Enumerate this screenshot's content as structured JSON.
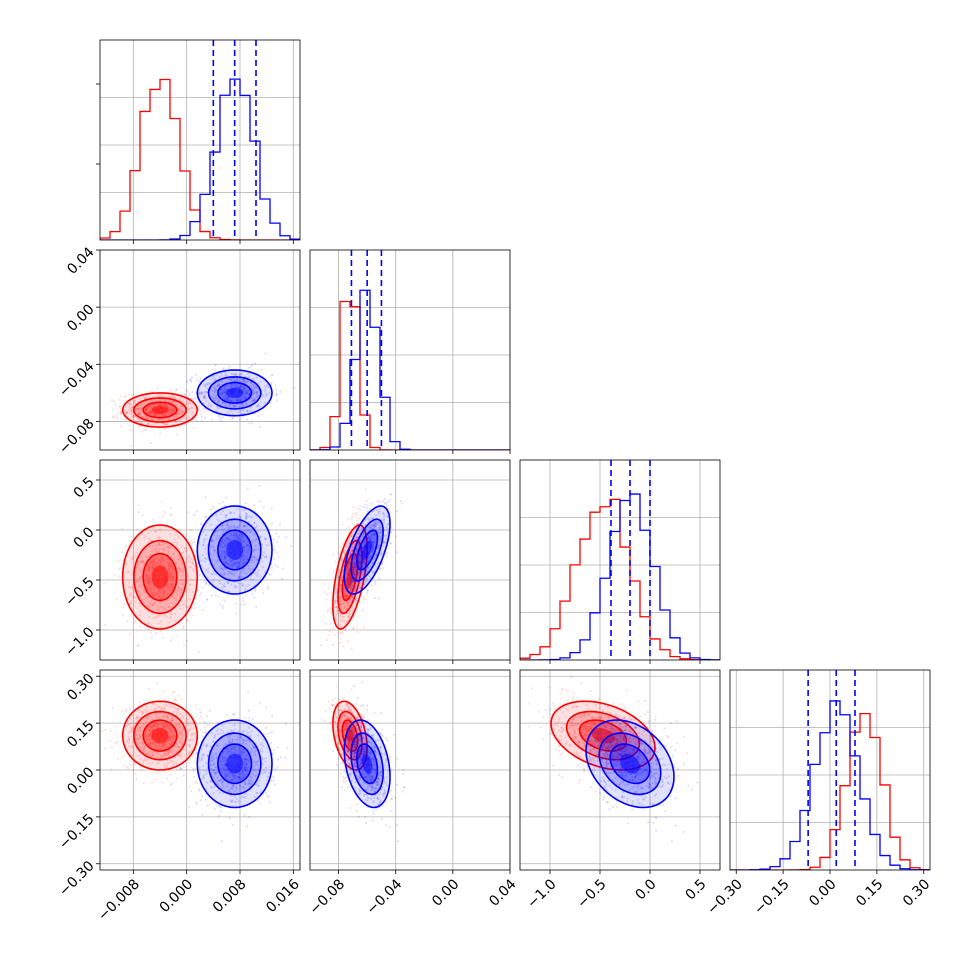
{
  "chart_data": {
    "type": "corner",
    "title": "",
    "grid": true,
    "params": [
      {
        "range": [
          -0.013,
          0.017
        ],
        "ticks": [
          -0.008,
          0.0,
          0.008,
          0.016
        ],
        "tick_labels": [
          "−0.008",
          "0.000",
          "0.008",
          "0.016"
        ],
        "quantiles": [
          0.004,
          0.0072,
          0.0104
        ]
      },
      {
        "range": [
          -0.1,
          0.04
        ],
        "ticks": [
          -0.08,
          -0.04,
          0.0,
          0.04
        ],
        "tick_labels": [
          "−0.08",
          "−0.04",
          "0.00",
          "0.04"
        ],
        "quantiles": [
          -0.071,
          -0.06,
          -0.05
        ]
      },
      {
        "range": [
          -1.3,
          0.7
        ],
        "ticks": [
          -1.0,
          -0.5,
          0.0,
          0.5
        ],
        "tick_labels": [
          "−1.0",
          "−0.5",
          "0.0",
          "0.5"
        ],
        "quantiles": [
          -0.39,
          -0.2,
          0.0
        ]
      },
      {
        "range": [
          -0.32,
          0.32
        ],
        "ticks": [
          -0.3,
          -0.15,
          0.0,
          0.15,
          0.3
        ],
        "tick_labels": [
          "−0.30",
          "−0.15",
          "0.00",
          "0.15",
          "0.30"
        ],
        "quantiles": [
          -0.07,
          0.02,
          0.08
        ]
      }
    ],
    "series": [
      {
        "color": "#ff0000",
        "centers": [
          -0.004,
          -0.072,
          -0.47,
          0.11
        ],
        "sigmas": [
          0.0028,
          0.006,
          0.26,
          0.055
        ],
        "corr": [
          [
            1,
            0,
            0,
            0
          ],
          [
            0,
            1,
            0.55,
            -0.35
          ],
          [
            0,
            0.55,
            1,
            -0.35
          ],
          [
            0,
            -0.35,
            -0.35,
            1
          ]
        ]
      },
      {
        "color": "#0000ff",
        "centers": [
          0.0072,
          -0.06,
          -0.2,
          0.02
        ],
        "sigmas": [
          0.0028,
          0.008,
          0.22,
          0.07
        ],
        "corr": [
          [
            1,
            0,
            0,
            0
          ],
          [
            0,
            1,
            0.6,
            -0.3
          ],
          [
            0,
            0.6,
            1,
            -0.3
          ],
          [
            0,
            -0.3,
            -0.3,
            1
          ]
        ]
      }
    ],
    "quantile_color": "#0000ff"
  }
}
